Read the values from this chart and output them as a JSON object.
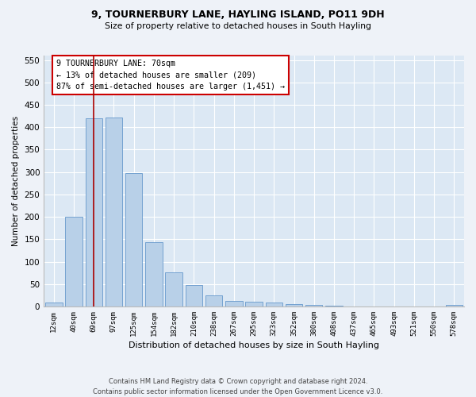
{
  "title1": "9, TOURNERBURY LANE, HAYLING ISLAND, PO11 9DH",
  "title2": "Size of property relative to detached houses in South Hayling",
  "xlabel": "Distribution of detached houses by size in South Hayling",
  "ylabel": "Number of detached properties",
  "categories": [
    "12sqm",
    "40sqm",
    "69sqm",
    "97sqm",
    "125sqm",
    "154sqm",
    "182sqm",
    "210sqm",
    "238sqm",
    "267sqm",
    "295sqm",
    "323sqm",
    "352sqm",
    "380sqm",
    "408sqm",
    "437sqm",
    "465sqm",
    "493sqm",
    "521sqm",
    "550sqm",
    "578sqm"
  ],
  "values": [
    8,
    200,
    420,
    422,
    298,
    143,
    77,
    47,
    25,
    12,
    10,
    8,
    5,
    3,
    2,
    0,
    0,
    0,
    0,
    0,
    3
  ],
  "bar_color": "#b8d0e8",
  "bar_edge_color": "#6699cc",
  "property_line_x": 2,
  "property_line_color": "#aa0000",
  "annotation_line1": "9 TOURNERBURY LANE: 70sqm",
  "annotation_line2": "← 13% of detached houses are smaller (209)",
  "annotation_line3": "87% of semi-detached houses are larger (1,451) →",
  "annotation_box_color": "#ffffff",
  "annotation_box_edge_color": "#cc0000",
  "ylim": [
    0,
    560
  ],
  "yticks": [
    0,
    50,
    100,
    150,
    200,
    250,
    300,
    350,
    400,
    450,
    500,
    550
  ],
  "footer1": "Contains HM Land Registry data © Crown copyright and database right 2024.",
  "footer2": "Contains public sector information licensed under the Open Government Licence v3.0.",
  "bg_color": "#eef2f8",
  "plot_bg_color": "#dce8f4"
}
